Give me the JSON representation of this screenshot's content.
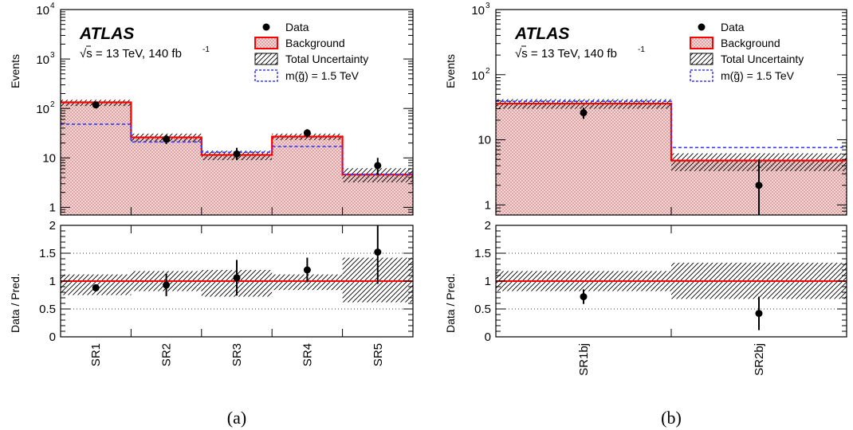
{
  "chart_data": [
    {
      "type": "bar",
      "panel_label": "(a)",
      "experiment": "ATLAS",
      "energy_label": "√s = 13 TeV, 140 fb",
      "lumi_superscript": "-1",
      "ylabel": "Events",
      "ratio_ylabel": "Data / Pred.",
      "log_y": true,
      "ylim": [
        0.7,
        10000
      ],
      "y_ticks": [
        {
          "value": 1,
          "label": "1"
        },
        {
          "value": 10,
          "label": "10"
        },
        {
          "value": 100,
          "base": "10",
          "exp": "2"
        },
        {
          "value": 1000,
          "base": "10",
          "exp": "3"
        },
        {
          "value": 10000,
          "base": "10",
          "exp": "4"
        }
      ],
      "ratio_ylim": [
        0,
        2
      ],
      "ratio_ticks": [
        "0",
        "0.5",
        "1",
        "1.5",
        "2"
      ],
      "categories": [
        "SR1",
        "SR2",
        "SR3",
        "SR4",
        "SR5"
      ],
      "legend": {
        "data": "Data",
        "background": "Background",
        "uncertainty": "Total Uncertainty",
        "signal_prefix": "m(",
        "signal_glyph": "g̃",
        "signal_suffix": ") = 1.5 TeV"
      },
      "series": [
        {
          "name": "Data",
          "values": [
            118,
            24,
            12,
            32,
            7
          ],
          "err_low": [
            11,
            5,
            3,
            6,
            2.5
          ],
          "err_high": [
            11,
            5,
            4,
            6,
            3
          ]
        },
        {
          "name": "Background",
          "values": [
            133,
            26,
            11.5,
            27,
            4.6
          ],
          "unc_low": [
            112,
            21,
            9,
            23,
            3.2
          ],
          "unc_high": [
            150,
            31,
            14,
            31,
            6.2
          ]
        },
        {
          "name": "m(g̃) = 1.5 TeV",
          "values": [
            48,
            21,
            13,
            17,
            4.6
          ]
        }
      ],
      "ratio": {
        "values": [
          0.88,
          0.93,
          1.06,
          1.2,
          1.52
        ],
        "err_low": [
          0.06,
          0.2,
          0.32,
          0.22,
          0.57
        ],
        "err_high": [
          0.06,
          0.2,
          0.32,
          0.22,
          0.5
        ],
        "unc_low": [
          0.75,
          0.82,
          0.72,
          0.84,
          0.62
        ],
        "unc_high": [
          1.12,
          1.18,
          1.2,
          1.12,
          1.42
        ]
      },
      "colors": {
        "background_line": "#ff0000",
        "background_fill": "#f2d0d0",
        "signal": "#3a3aff",
        "data": "#000000"
      }
    },
    {
      "type": "bar",
      "panel_label": "(b)",
      "experiment": "ATLAS",
      "energy_label": "√s = 13 TeV, 140 fb",
      "lumi_superscript": "-1",
      "ylabel": "Events",
      "ratio_ylabel": "Data / Pred.",
      "log_y": true,
      "ylim": [
        0.7,
        1000
      ],
      "y_ticks": [
        {
          "value": 1,
          "label": "1"
        },
        {
          "value": 10,
          "label": "10"
        },
        {
          "value": 100,
          "base": "10",
          "exp": "2"
        },
        {
          "value": 1000,
          "base": "10",
          "exp": "3"
        }
      ],
      "ratio_ylim": [
        0,
        2
      ],
      "ratio_ticks": [
        "0",
        "0.5",
        "1",
        "1.5",
        "2"
      ],
      "categories": [
        "SR1bj",
        "SR2bj"
      ],
      "legend": {
        "data": "Data",
        "background": "Background",
        "uncertainty": "Total Uncertainty",
        "signal_prefix": "m(",
        "signal_glyph": "g̃",
        "signal_suffix": ") = 1.5 TeV"
      },
      "series": [
        {
          "name": "Data",
          "values": [
            26,
            2
          ],
          "err_low": [
            5,
            1.3
          ],
          "err_high": [
            5,
            3
          ]
        },
        {
          "name": "Background",
          "values": [
            36,
            4.8
          ],
          "unc_low": [
            30,
            3.3
          ],
          "unc_high": [
            42,
            6.2
          ]
        },
        {
          "name": "m(g̃) = 1.5 TeV",
          "values": [
            39,
            7.6
          ]
        }
      ],
      "ratio": {
        "values": [
          0.72,
          0.42
        ],
        "err_low": [
          0.13,
          0.3
        ],
        "err_high": [
          0.13,
          0.3
        ],
        "unc_low": [
          0.82,
          0.68
        ],
        "unc_high": [
          1.18,
          1.33
        ]
      },
      "colors": {
        "background_line": "#ff0000",
        "background_fill": "#f2d0d0",
        "signal": "#3a3aff",
        "data": "#000000"
      }
    }
  ]
}
